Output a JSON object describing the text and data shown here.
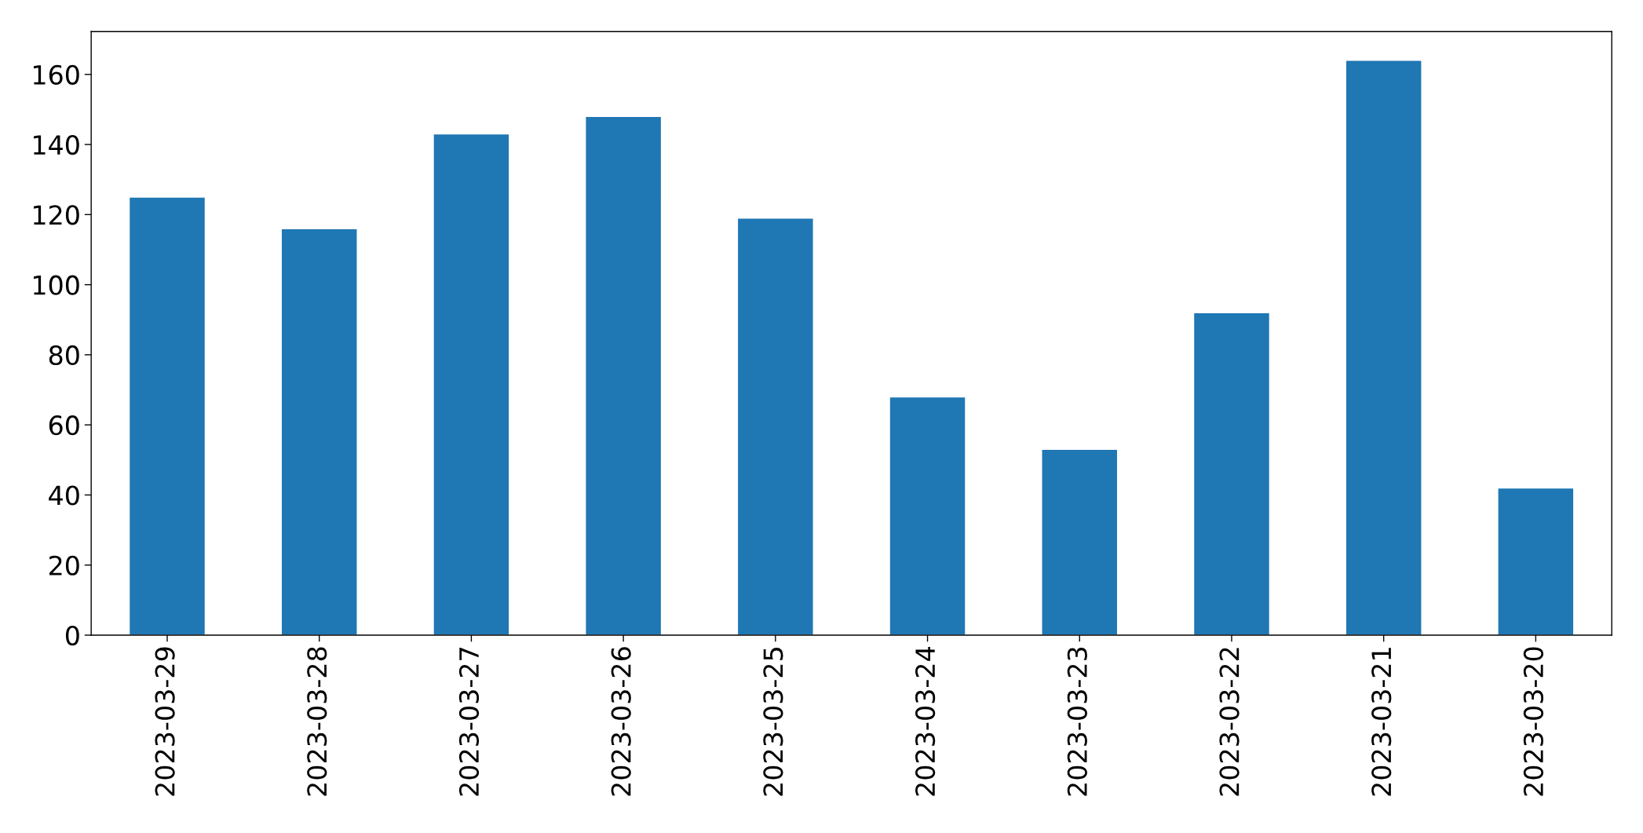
{
  "chart_data": {
    "type": "bar",
    "categories": [
      "2023-03-29",
      "2023-03-28",
      "2023-03-27",
      "2023-03-26",
      "2023-03-25",
      "2023-03-24",
      "2023-03-23",
      "2023-03-22",
      "2023-03-21",
      "2023-03-20"
    ],
    "values": [
      125,
      116,
      143,
      148,
      119,
      68,
      53,
      92,
      164,
      42
    ],
    "color": "#1f77b4",
    "ylim": [
      0,
      172.2
    ],
    "yticks": [
      0,
      20,
      40,
      60,
      80,
      100,
      120,
      140,
      160
    ],
    "grid": false,
    "legend": false
  }
}
